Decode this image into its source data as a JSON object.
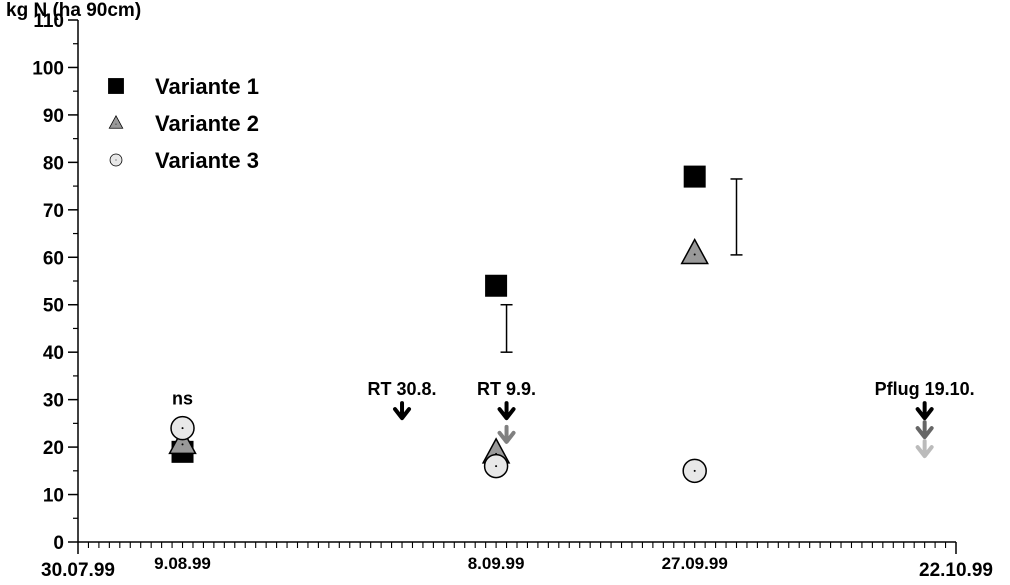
{
  "chart_data": {
    "type": "scatter",
    "ylabel": "kg N (ha 90cm)",
    "ylim": [
      0,
      110
    ],
    "yticks": [
      0,
      10,
      20,
      30,
      40,
      50,
      60,
      70,
      80,
      90,
      100,
      110
    ],
    "xlim": [
      "1999-07-30",
      "1999-10-22"
    ],
    "x_edge_labels": [
      "30.07.99",
      "22.10.99"
    ],
    "x_date_labels": [
      {
        "date": "1999-08-09",
        "label": "9.08.99"
      },
      {
        "date": "1999-09-08",
        "label": "8.09.99"
      },
      {
        "date": "1999-09-27",
        "label": "27.09.99"
      }
    ],
    "legend_position": "top-left",
    "series": [
      {
        "name": "Variante 1",
        "marker": "square",
        "color": "#000000",
        "points": [
          {
            "x": "1999-08-09",
            "y": 19
          },
          {
            "x": "1999-09-08",
            "y": 54
          },
          {
            "x": "1999-09-27",
            "y": 77
          }
        ]
      },
      {
        "name": "Variante 2",
        "marker": "triangle",
        "color": "#999999",
        "points": [
          {
            "x": "1999-08-09",
            "y": 21
          },
          {
            "x": "1999-09-08",
            "y": 19
          },
          {
            "x": "1999-09-27",
            "y": 61
          }
        ]
      },
      {
        "name": "Variante 3",
        "marker": "circle",
        "color": "#e8e8e8",
        "points": [
          {
            "x": "1999-08-09",
            "y": 24
          },
          {
            "x": "1999-09-08",
            "y": 16
          },
          {
            "x": "1999-09-27",
            "y": 15
          }
        ]
      }
    ],
    "error_bars": [
      {
        "x": "1999-09-09",
        "low": 40,
        "high": 50
      },
      {
        "x": "1999-10-01",
        "low": 60.5,
        "high": 76.5
      }
    ],
    "annotations": [
      {
        "text": "ns",
        "x": "1999-08-09",
        "y": 29
      },
      {
        "text": "RT 30.8.",
        "x": "1999-08-30",
        "y": 31,
        "arrows": [
          {
            "y": 28,
            "color": "#000000"
          }
        ]
      },
      {
        "text": "RT 9.9.",
        "x": "1999-09-09",
        "y": 31,
        "arrows": [
          {
            "y": 28,
            "color": "#000000"
          },
          {
            "y": 23,
            "color": "#808080"
          }
        ]
      },
      {
        "text": "Pflug 19.10.",
        "x": "1999-10-19",
        "y": 31,
        "arrows": [
          {
            "y": 28,
            "color": "#000000"
          },
          {
            "y": 24,
            "color": "#666666"
          },
          {
            "y": 20,
            "color": "#bbbbbb"
          }
        ]
      }
    ]
  }
}
